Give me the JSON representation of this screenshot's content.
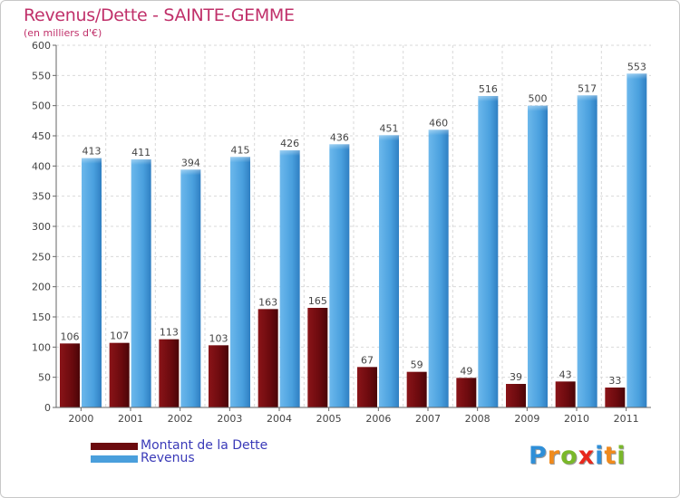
{
  "chart_data": {
    "type": "bar",
    "title": "Revenus/Dette - SAINTE-GEMME",
    "subtitle": "(en milliers d'€)",
    "categories": [
      "2000",
      "2001",
      "2002",
      "2003",
      "2004",
      "2005",
      "2006",
      "2007",
      "2008",
      "2009",
      "2010",
      "2011"
    ],
    "series": [
      {
        "name": "Montant de la Dette",
        "color": "#6b0a0e",
        "values": [
          106,
          107,
          113,
          103,
          163,
          165,
          67,
          59,
          49,
          39,
          43,
          33
        ]
      },
      {
        "name": "Revenus",
        "color": "#4a9fdc",
        "values": [
          413,
          411,
          394,
          415,
          426,
          436,
          451,
          460,
          516,
          500,
          517,
          553
        ]
      }
    ],
    "ylim": [
      0,
      600
    ],
    "yticks": [
      0,
      50,
      100,
      150,
      200,
      250,
      300,
      350,
      400,
      450,
      500,
      550,
      600
    ],
    "grid": true,
    "legend_position": "bottom-left"
  },
  "legend": {
    "items": [
      {
        "label": "Montant de la Dette",
        "color": "#6b0a0e"
      },
      {
        "label": "Revenus",
        "color": "#4a9fdc"
      }
    ]
  },
  "logo": {
    "letters": [
      {
        "char": "P",
        "color": "#2f8fd8"
      },
      {
        "char": "r",
        "color": "#f08a1c"
      },
      {
        "char": "o",
        "color": "#7ab82a"
      },
      {
        "char": "x",
        "color": "#e8281c"
      },
      {
        "char": "i",
        "color": "#2f8fd8"
      },
      {
        "char": "t",
        "color": "#f08a1c"
      },
      {
        "char": "i",
        "color": "#7ab82a"
      }
    ]
  }
}
